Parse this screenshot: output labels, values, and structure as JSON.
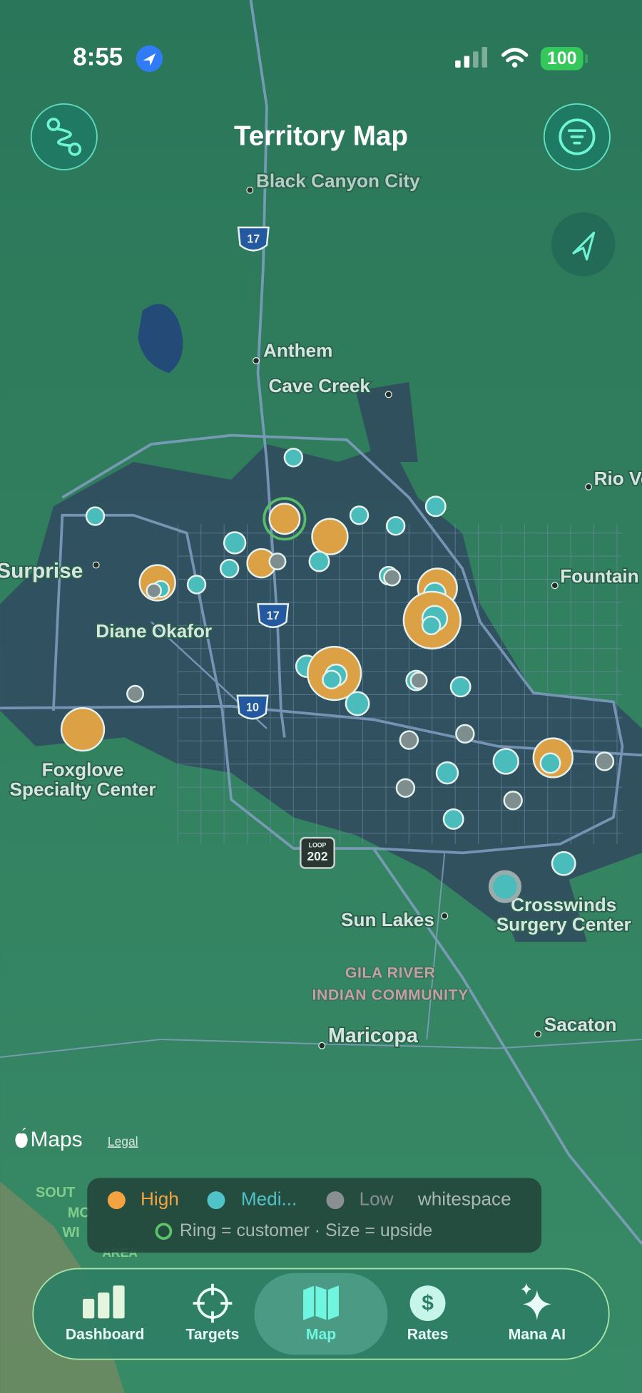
{
  "status_bar": {
    "time": "8:55",
    "battery": "100"
  },
  "header": {
    "title": "Territory Map"
  },
  "map": {
    "labels": [
      "Black Canyon City",
      "Anthem",
      "Cave Creek",
      "Rio Ve",
      "Surprise",
      "Fountain",
      "Diane Okafor",
      "Foxglove",
      "Specialty Center",
      "Sun Lakes",
      "Crosswinds",
      "Surgery Center",
      "Maricopa",
      "Sacaton"
    ],
    "reserve": [
      "GILA RIVER",
      "INDIAN COMMUNITY"
    ],
    "edge_labels": [
      "SOUT",
      "MO",
      "WI",
      "AREA"
    ],
    "shields": [
      "17",
      "17",
      "10",
      "202"
    ],
    "loop": "LOOP",
    "attribution": "Maps",
    "legal": "Legal"
  },
  "legend": {
    "items": [
      "High",
      "Medi...",
      "Low",
      "whitespace"
    ],
    "note": "Ring = customer · Size = upside"
  },
  "tab_bar": {
    "items": [
      "Dashboard",
      "Targets",
      "Map",
      "Rates",
      "Mana AI"
    ],
    "rates_icon": "$"
  }
}
